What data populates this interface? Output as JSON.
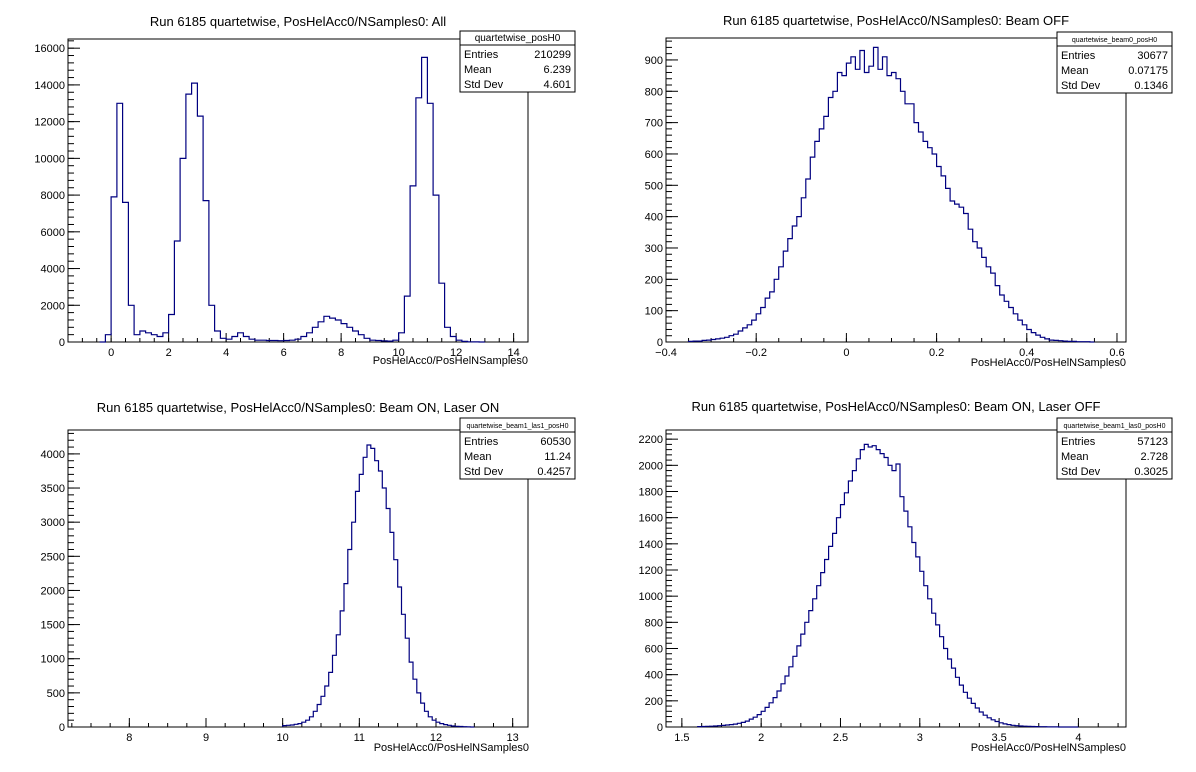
{
  "chart_data": [
    {
      "type": "histogram",
      "title": "Run 6185 quartetwise, PosHelAcc0/NSamples0: All",
      "xlabel": "PosHelAcc0/PosHelNSamples0",
      "ylabel": "",
      "xlim": [
        -1.5,
        14.5
      ],
      "ylim": [
        0,
        16500
      ],
      "xticks": [
        "0",
        "2",
        "4",
        "6",
        "8",
        "10",
        "12",
        "14"
      ],
      "yticks": [
        "0",
        "2000",
        "4000",
        "6000",
        "8000",
        "10000",
        "12000",
        "14000",
        "16000"
      ],
      "stats": {
        "name": "quartetwise_posH0",
        "entries": "210299",
        "mean": "6.239",
        "stddev": "4.601"
      },
      "bin_edges": [
        -0.4,
        -0.2,
        0.0,
        0.2,
        0.4,
        0.6,
        0.8,
        1.0,
        1.2,
        1.4,
        1.6,
        1.8,
        2.0,
        2.2,
        2.4,
        2.6,
        2.8,
        3.0,
        3.2,
        3.4,
        3.6,
        3.8,
        4.0,
        4.2,
        4.4,
        4.6,
        4.8,
        5.0,
        5.2,
        5.4,
        5.6,
        5.8,
        6.0,
        6.2,
        6.4,
        6.6,
        6.8,
        7.0,
        7.2,
        7.4,
        7.6,
        7.8,
        8.0,
        8.2,
        8.4,
        8.6,
        8.8,
        9.0,
        9.2,
        9.4,
        9.6,
        9.8,
        10.0,
        10.2,
        10.4,
        10.6,
        10.8,
        11.0,
        11.2,
        11.4,
        11.6,
        11.8,
        12.0,
        12.2,
        12.4,
        12.6,
        12.8,
        13.0
      ],
      "values": [
        0,
        400,
        7900,
        13000,
        7600,
        2000,
        400,
        600,
        500,
        400,
        300,
        500,
        1500,
        5500,
        10000,
        13500,
        14100,
        12300,
        7700,
        2000,
        600,
        200,
        150,
        300,
        500,
        300,
        150,
        100,
        100,
        80,
        80,
        70,
        80,
        100,
        150,
        300,
        500,
        800,
        1100,
        1400,
        1300,
        1200,
        1000,
        800,
        600,
        400,
        200,
        100,
        80,
        60,
        50,
        100,
        500,
        2500,
        8500,
        13300,
        15500,
        13000,
        8000,
        3200,
        800,
        300,
        100,
        30,
        10,
        5,
        0
      ]
    },
    {
      "type": "histogram",
      "title": "Run 6185 quartetwise, PosHelAcc0/NSamples0: Beam OFF",
      "xlabel": "PosHelAcc0/PosHelNSamples0",
      "ylabel": "",
      "xlim": [
        -0.4,
        0.62
      ],
      "ylim": [
        0,
        970
      ],
      "xticks": [
        "−0.4",
        "−0.2",
        "0",
        "0.2",
        "0.4",
        "0.6"
      ],
      "yticks": [
        "0",
        "100",
        "200",
        "300",
        "400",
        "500",
        "600",
        "700",
        "800",
        "900"
      ],
      "stats": {
        "name": "quartetwise_beam0_posH0",
        "entries": "30677",
        "mean": "0.07175",
        "stddev": "0.1346"
      },
      "bin_edges": [
        -0.35,
        -0.34,
        -0.33,
        -0.32,
        -0.31,
        -0.3,
        -0.29,
        -0.28,
        -0.27,
        -0.26,
        -0.25,
        -0.24,
        -0.23,
        -0.22,
        -0.21,
        -0.2,
        -0.19,
        -0.18,
        -0.17,
        -0.16,
        -0.15,
        -0.14,
        -0.13,
        -0.12,
        -0.11,
        -0.1,
        -0.09,
        -0.08,
        -0.07,
        -0.06,
        -0.05,
        -0.04,
        -0.03,
        -0.02,
        -0.01,
        0.0,
        0.01,
        0.02,
        0.03,
        0.04,
        0.05,
        0.06,
        0.07,
        0.08,
        0.09,
        0.1,
        0.11,
        0.12,
        0.13,
        0.14,
        0.15,
        0.16,
        0.17,
        0.18,
        0.19,
        0.2,
        0.21,
        0.22,
        0.23,
        0.24,
        0.25,
        0.26,
        0.27,
        0.28,
        0.29,
        0.3,
        0.31,
        0.32,
        0.33,
        0.34,
        0.35,
        0.36,
        0.37,
        0.38,
        0.39,
        0.4,
        0.41,
        0.42,
        0.43,
        0.44,
        0.45,
        0.46,
        0.47,
        0.48,
        0.49,
        0.5,
        0.51,
        0.52,
        0.53,
        0.54,
        0.55
      ],
      "values": [
        2,
        3,
        3,
        5,
        6,
        8,
        10,
        12,
        15,
        20,
        25,
        35,
        45,
        55,
        70,
        90,
        110,
        140,
        160,
        200,
        240,
        290,
        330,
        370,
        400,
        460,
        520,
        590,
        640,
        680,
        720,
        780,
        800,
        860,
        850,
        890,
        910,
        870,
        930,
        860,
        880,
        940,
        870,
        910,
        850,
        860,
        840,
        800,
        760,
        760,
        700,
        670,
        640,
        620,
        600,
        560,
        530,
        490,
        450,
        440,
        430,
        410,
        360,
        320,
        300,
        270,
        240,
        220,
        180,
        150,
        130,
        110,
        90,
        70,
        55,
        40,
        30,
        22,
        15,
        10,
        6,
        5,
        4,
        3,
        2,
        2,
        1,
        1,
        1,
        0
      ]
    },
    {
      "type": "histogram",
      "title": "Run 6185 quartetwise, PosHelAcc0/NSamples0: Beam ON, Laser ON",
      "xlabel": "PosHelAcc0/PosHelNSamples0",
      "ylabel": "",
      "xlim": [
        7.2,
        13.2
      ],
      "ylim": [
        0,
        4350
      ],
      "xticks": [
        "8",
        "9",
        "10",
        "11",
        "12",
        "13"
      ],
      "yticks": [
        "0",
        "500",
        "1000",
        "1500",
        "2000",
        "2500",
        "3000",
        "3500",
        "4000"
      ],
      "stats": {
        "name": "quartetwise_beam1_las1_posH0",
        "entries": "60530",
        "mean": "11.24",
        "stddev": "0.4257"
      },
      "bin_edges": [
        10.0,
        10.05,
        10.1,
        10.15,
        10.2,
        10.25,
        10.3,
        10.35,
        10.4,
        10.45,
        10.5,
        10.55,
        10.6,
        10.65,
        10.7,
        10.75,
        10.8,
        10.85,
        10.9,
        10.95,
        11.0,
        11.05,
        11.1,
        11.15,
        11.2,
        11.25,
        11.3,
        11.35,
        11.4,
        11.45,
        11.5,
        11.55,
        11.6,
        11.65,
        11.7,
        11.75,
        11.8,
        11.85,
        11.9,
        11.95,
        12.0,
        12.05,
        12.1,
        12.15,
        12.2,
        12.25,
        12.3,
        12.35,
        12.4,
        12.45,
        12.5
      ],
      "values": [
        20,
        25,
        30,
        40,
        50,
        70,
        100,
        150,
        230,
        330,
        450,
        600,
        800,
        1050,
        1350,
        1700,
        2100,
        2600,
        3000,
        3450,
        3700,
        3950,
        4130,
        4080,
        3900,
        3750,
        3500,
        3200,
        2850,
        2450,
        2050,
        1650,
        1300,
        950,
        700,
        500,
        350,
        230,
        150,
        100,
        70,
        50,
        35,
        25,
        15,
        10,
        8,
        5,
        3,
        0
      ]
    },
    {
      "type": "histogram",
      "title": "Run 6185 quartetwise, PosHelAcc0/NSamples0: Beam ON, Laser OFF",
      "xlabel": "PosHelAcc0/PosHelNSamples0",
      "ylabel": "",
      "xlim": [
        1.4,
        4.3
      ],
      "ylim": [
        0,
        2270
      ],
      "xticks": [
        "1.5",
        "2",
        "2.5",
        "3",
        "3.5",
        "4"
      ],
      "yticks": [
        "0",
        "200",
        "400",
        "600",
        "800",
        "1000",
        "1200",
        "1400",
        "1600",
        "1800",
        "2000",
        "2200"
      ],
      "stats": {
        "name": "quartetwise_beam1_las0_posH0",
        "entries": "57123",
        "mean": "2.728",
        "stddev": "0.3025"
      },
      "bin_edges": [
        1.6,
        1.625,
        1.65,
        1.675,
        1.7,
        1.725,
        1.75,
        1.775,
        1.8,
        1.825,
        1.85,
        1.875,
        1.9,
        1.925,
        1.95,
        1.975,
        2.0,
        2.025,
        2.05,
        2.075,
        2.1,
        2.125,
        2.15,
        2.175,
        2.2,
        2.225,
        2.25,
        2.275,
        2.3,
        2.325,
        2.35,
        2.375,
        2.4,
        2.425,
        2.45,
        2.475,
        2.5,
        2.525,
        2.55,
        2.575,
        2.6,
        2.625,
        2.65,
        2.675,
        2.7,
        2.725,
        2.75,
        2.775,
        2.8,
        2.825,
        2.85,
        2.875,
        2.9,
        2.925,
        2.95,
        2.975,
        3.0,
        3.025,
        3.05,
        3.075,
        3.1,
        3.125,
        3.15,
        3.175,
        3.2,
        3.225,
        3.25,
        3.275,
        3.3,
        3.325,
        3.35,
        3.375,
        3.4,
        3.425,
        3.45,
        3.475,
        3.5,
        3.525,
        3.55,
        3.575,
        3.6,
        3.625,
        3.65,
        3.675,
        3.7,
        3.725,
        3.75,
        3.775,
        3.8,
        3.825,
        3.85,
        3.875,
        3.9,
        3.925,
        3.95,
        3.975,
        4.0
      ],
      "values": [
        3,
        4,
        5,
        6,
        8,
        10,
        12,
        15,
        18,
        22,
        28,
        35,
        45,
        60,
        75,
        95,
        120,
        150,
        185,
        225,
        275,
        330,
        390,
        460,
        540,
        620,
        710,
        800,
        890,
        980,
        1080,
        1180,
        1280,
        1380,
        1480,
        1600,
        1700,
        1790,
        1880,
        1960,
        2050,
        2120,
        2160,
        2140,
        2150,
        2120,
        2090,
        2060,
        2000,
        1960,
        2010,
        1760,
        1650,
        1530,
        1410,
        1300,
        1190,
        1080,
        980,
        870,
        780,
        690,
        600,
        520,
        450,
        380,
        320,
        265,
        220,
        180,
        145,
        115,
        90,
        70,
        55,
        42,
        32,
        24,
        18,
        13,
        10,
        8,
        6,
        5,
        4,
        3,
        2,
        2,
        1,
        1,
        1,
        0,
        0,
        0,
        0,
        0
      ]
    }
  ]
}
